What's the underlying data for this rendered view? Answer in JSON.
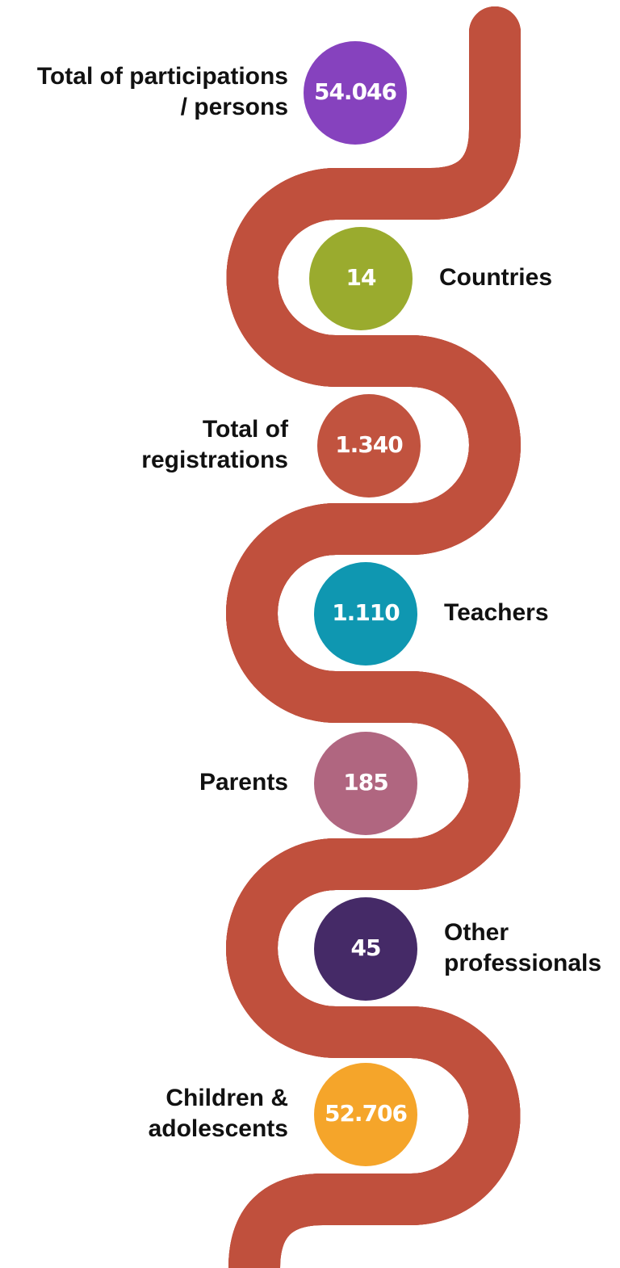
{
  "items": [
    {
      "value": "54.046",
      "label": [
        "Total of participations",
        "/ persons"
      ],
      "color": "#8642be"
    },
    {
      "value": "14",
      "label": [
        "Countries"
      ],
      "color": "#9aab2e"
    },
    {
      "value": "1.340",
      "label": [
        "Total of",
        "registrations"
      ],
      "color": "#c1533f"
    },
    {
      "value": "1.110",
      "label": [
        "Teachers"
      ],
      "color": "#0f97b1"
    },
    {
      "value": "185",
      "label": [
        "Parents"
      ],
      "color": "#b06680"
    },
    {
      "value": "45",
      "label": [
        "Other",
        "professionals"
      ],
      "color": "#452a67"
    },
    {
      "value": "52.706",
      "label": [
        "Children &",
        "adolescents"
      ],
      "color": "#f5a52a"
    }
  ]
}
